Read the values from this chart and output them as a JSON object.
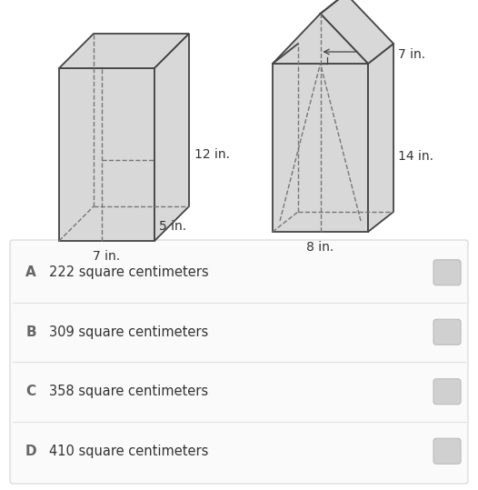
{
  "bg_color": "#ffffff",
  "shape_fill": "#d8d8d8",
  "shape_edge": "#444444",
  "dashed_color": "#777777",
  "panel_bg": "#fafafa",
  "panel_border": "#dddddd",
  "divider_color": "#e0e0e0",
  "radio_fill": "#d0d0d0",
  "radio_border": "#bbbbbb",
  "text_color": "#333333",
  "label_color": "#666666",
  "answer_options": [
    {
      "label": "A",
      "text": "222 square centimeters"
    },
    {
      "label": "B",
      "text": "309 square centimeters"
    },
    {
      "label": "C",
      "text": "358 square centimeters"
    },
    {
      "label": "D",
      "text": "410 square centimeters"
    }
  ],
  "box1": {
    "label_bottom": "7 in.",
    "label_depth": "5 in.",
    "label_height": "12 in."
  },
  "box2": {
    "label_bottom": "8 in.",
    "label_height": "14 in.",
    "label_apothem": "7 in."
  }
}
